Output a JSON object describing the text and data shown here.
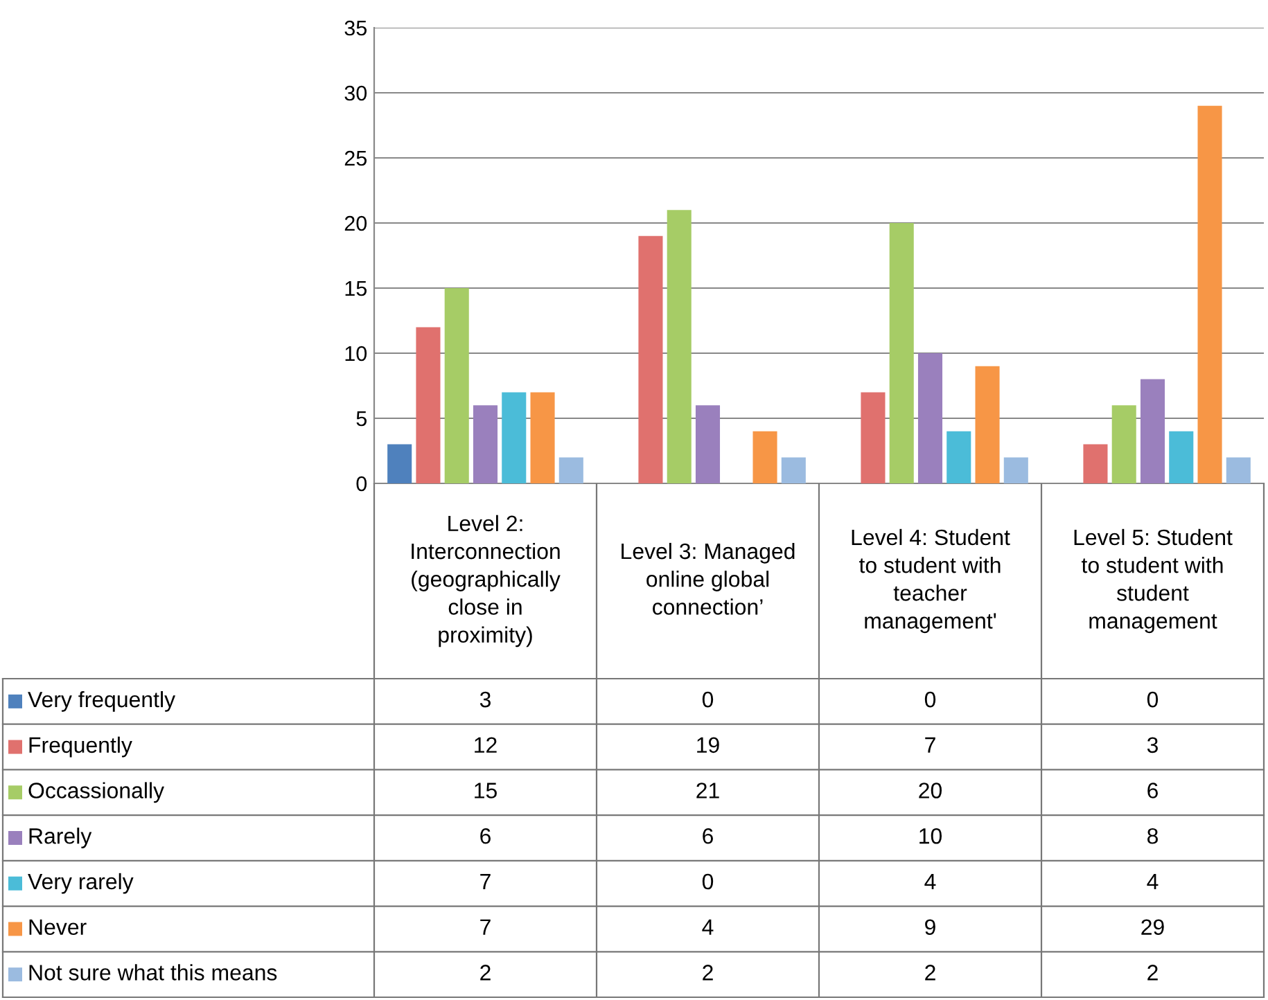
{
  "chart_data": {
    "type": "bar",
    "categories": [
      "Level 2: Interconnection (geographically close in proximity)",
      "Level 3: Managed online global connection’",
      "Level 4: Student to student with teacher management'",
      "Level 5: Student to student with student management"
    ],
    "series": [
      {
        "name": "Very frequently",
        "color": "#4f81bd",
        "values": [
          3,
          0,
          0,
          0
        ]
      },
      {
        "name": "Frequently",
        "color": "#e0716e",
        "values": [
          12,
          19,
          7,
          3
        ]
      },
      {
        "name": "Occassionally",
        "color": "#a6cc66",
        "values": [
          15,
          21,
          20,
          6
        ]
      },
      {
        "name": "Rarely",
        "color": "#9a80bd",
        "values": [
          6,
          6,
          10,
          8
        ]
      },
      {
        "name": "Very rarely",
        "color": "#4bbcd8",
        "values": [
          7,
          0,
          4,
          4
        ]
      },
      {
        "name": "Never",
        "color": "#f79646",
        "values": [
          7,
          4,
          9,
          29
        ]
      },
      {
        "name": "Not sure what this means",
        "color": "#9bbbe0",
        "values": [
          2,
          2,
          2,
          2
        ]
      }
    ],
    "ylim": [
      0,
      35
    ],
    "yticks": [
      0,
      5,
      10,
      15,
      20,
      25,
      30,
      35
    ],
    "grid": "y",
    "legend": "bottom left",
    "data_labels": true
  }
}
